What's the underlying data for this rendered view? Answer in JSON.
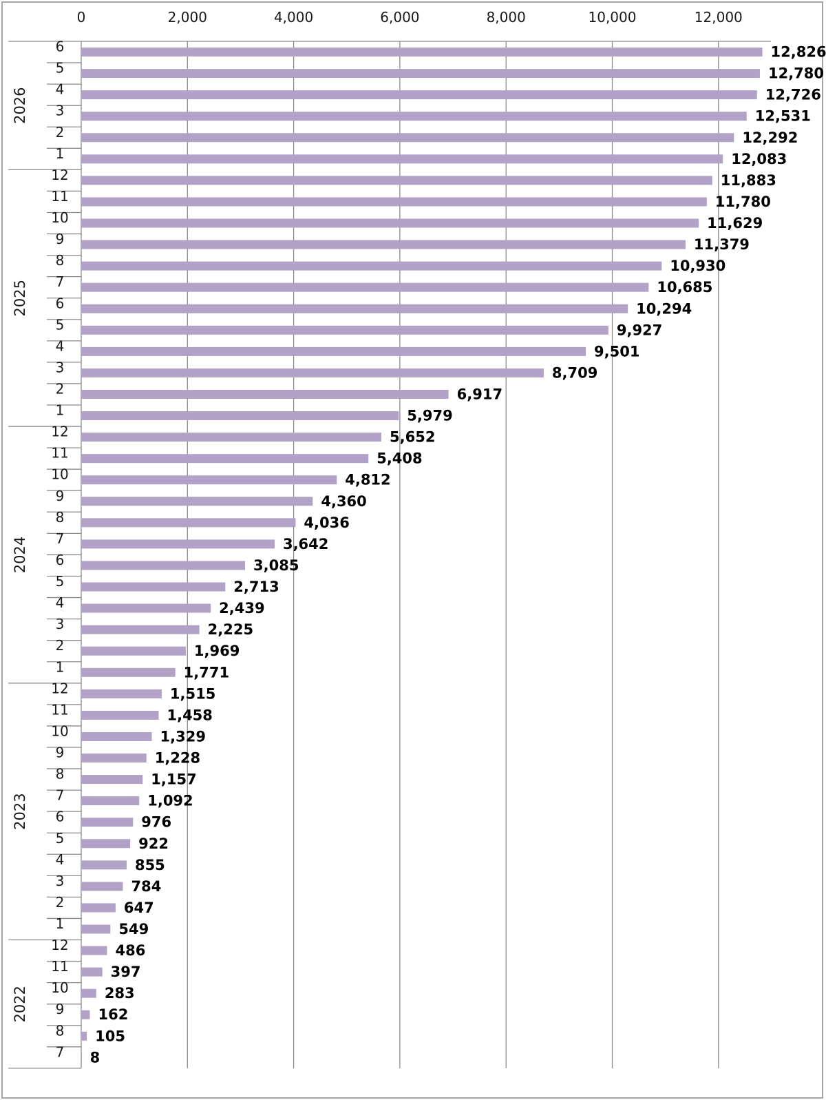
{
  "chart_data": {
    "type": "bar",
    "orientation": "horizontal",
    "title": "",
    "xlabel": "",
    "ylabel": "",
    "xlim": [
      0,
      13000
    ],
    "x_ticks": [
      0,
      2000,
      4000,
      6000,
      8000,
      10000,
      12000
    ],
    "x_tick_labels": [
      "0",
      "2,000",
      "4,000",
      "6,000",
      "8,000",
      "10,000",
      "12,000"
    ],
    "grid": true,
    "bar_color": "#b3a2c7",
    "groups": [
      {
        "label": "2026",
        "categories": [
          "6",
          "5",
          "4",
          "3",
          "2",
          "1"
        ],
        "values": [
          12826,
          12780,
          12726,
          12531,
          12292,
          12083
        ]
      },
      {
        "label": "2025",
        "categories": [
          "12",
          "11",
          "10",
          "9",
          "8",
          "7",
          "6",
          "5",
          "4",
          "3",
          "2",
          "1"
        ],
        "values": [
          11883,
          11780,
          11629,
          11379,
          10930,
          10685,
          10294,
          9927,
          9501,
          8709,
          6917,
          5979
        ]
      },
      {
        "label": "2024",
        "categories": [
          "12",
          "11",
          "10",
          "9",
          "8",
          "7",
          "6",
          "5",
          "4",
          "3",
          "2",
          "1"
        ],
        "values": [
          5652,
          5408,
          4812,
          4360,
          4036,
          3642,
          3085,
          2713,
          2439,
          2225,
          1969,
          1771
        ]
      },
      {
        "label": "2023",
        "categories": [
          "12",
          "11",
          "10",
          "9",
          "8",
          "7",
          "6",
          "5",
          "4",
          "3",
          "2",
          "1"
        ],
        "values": [
          1515,
          1458,
          1329,
          1228,
          1157,
          1092,
          976,
          922,
          855,
          784,
          647,
          549
        ]
      },
      {
        "label": "2022",
        "categories": [
          "12",
          "11",
          "10",
          "9",
          "8",
          "7"
        ],
        "values": [
          486,
          397,
          283,
          162,
          105,
          8
        ]
      }
    ]
  }
}
